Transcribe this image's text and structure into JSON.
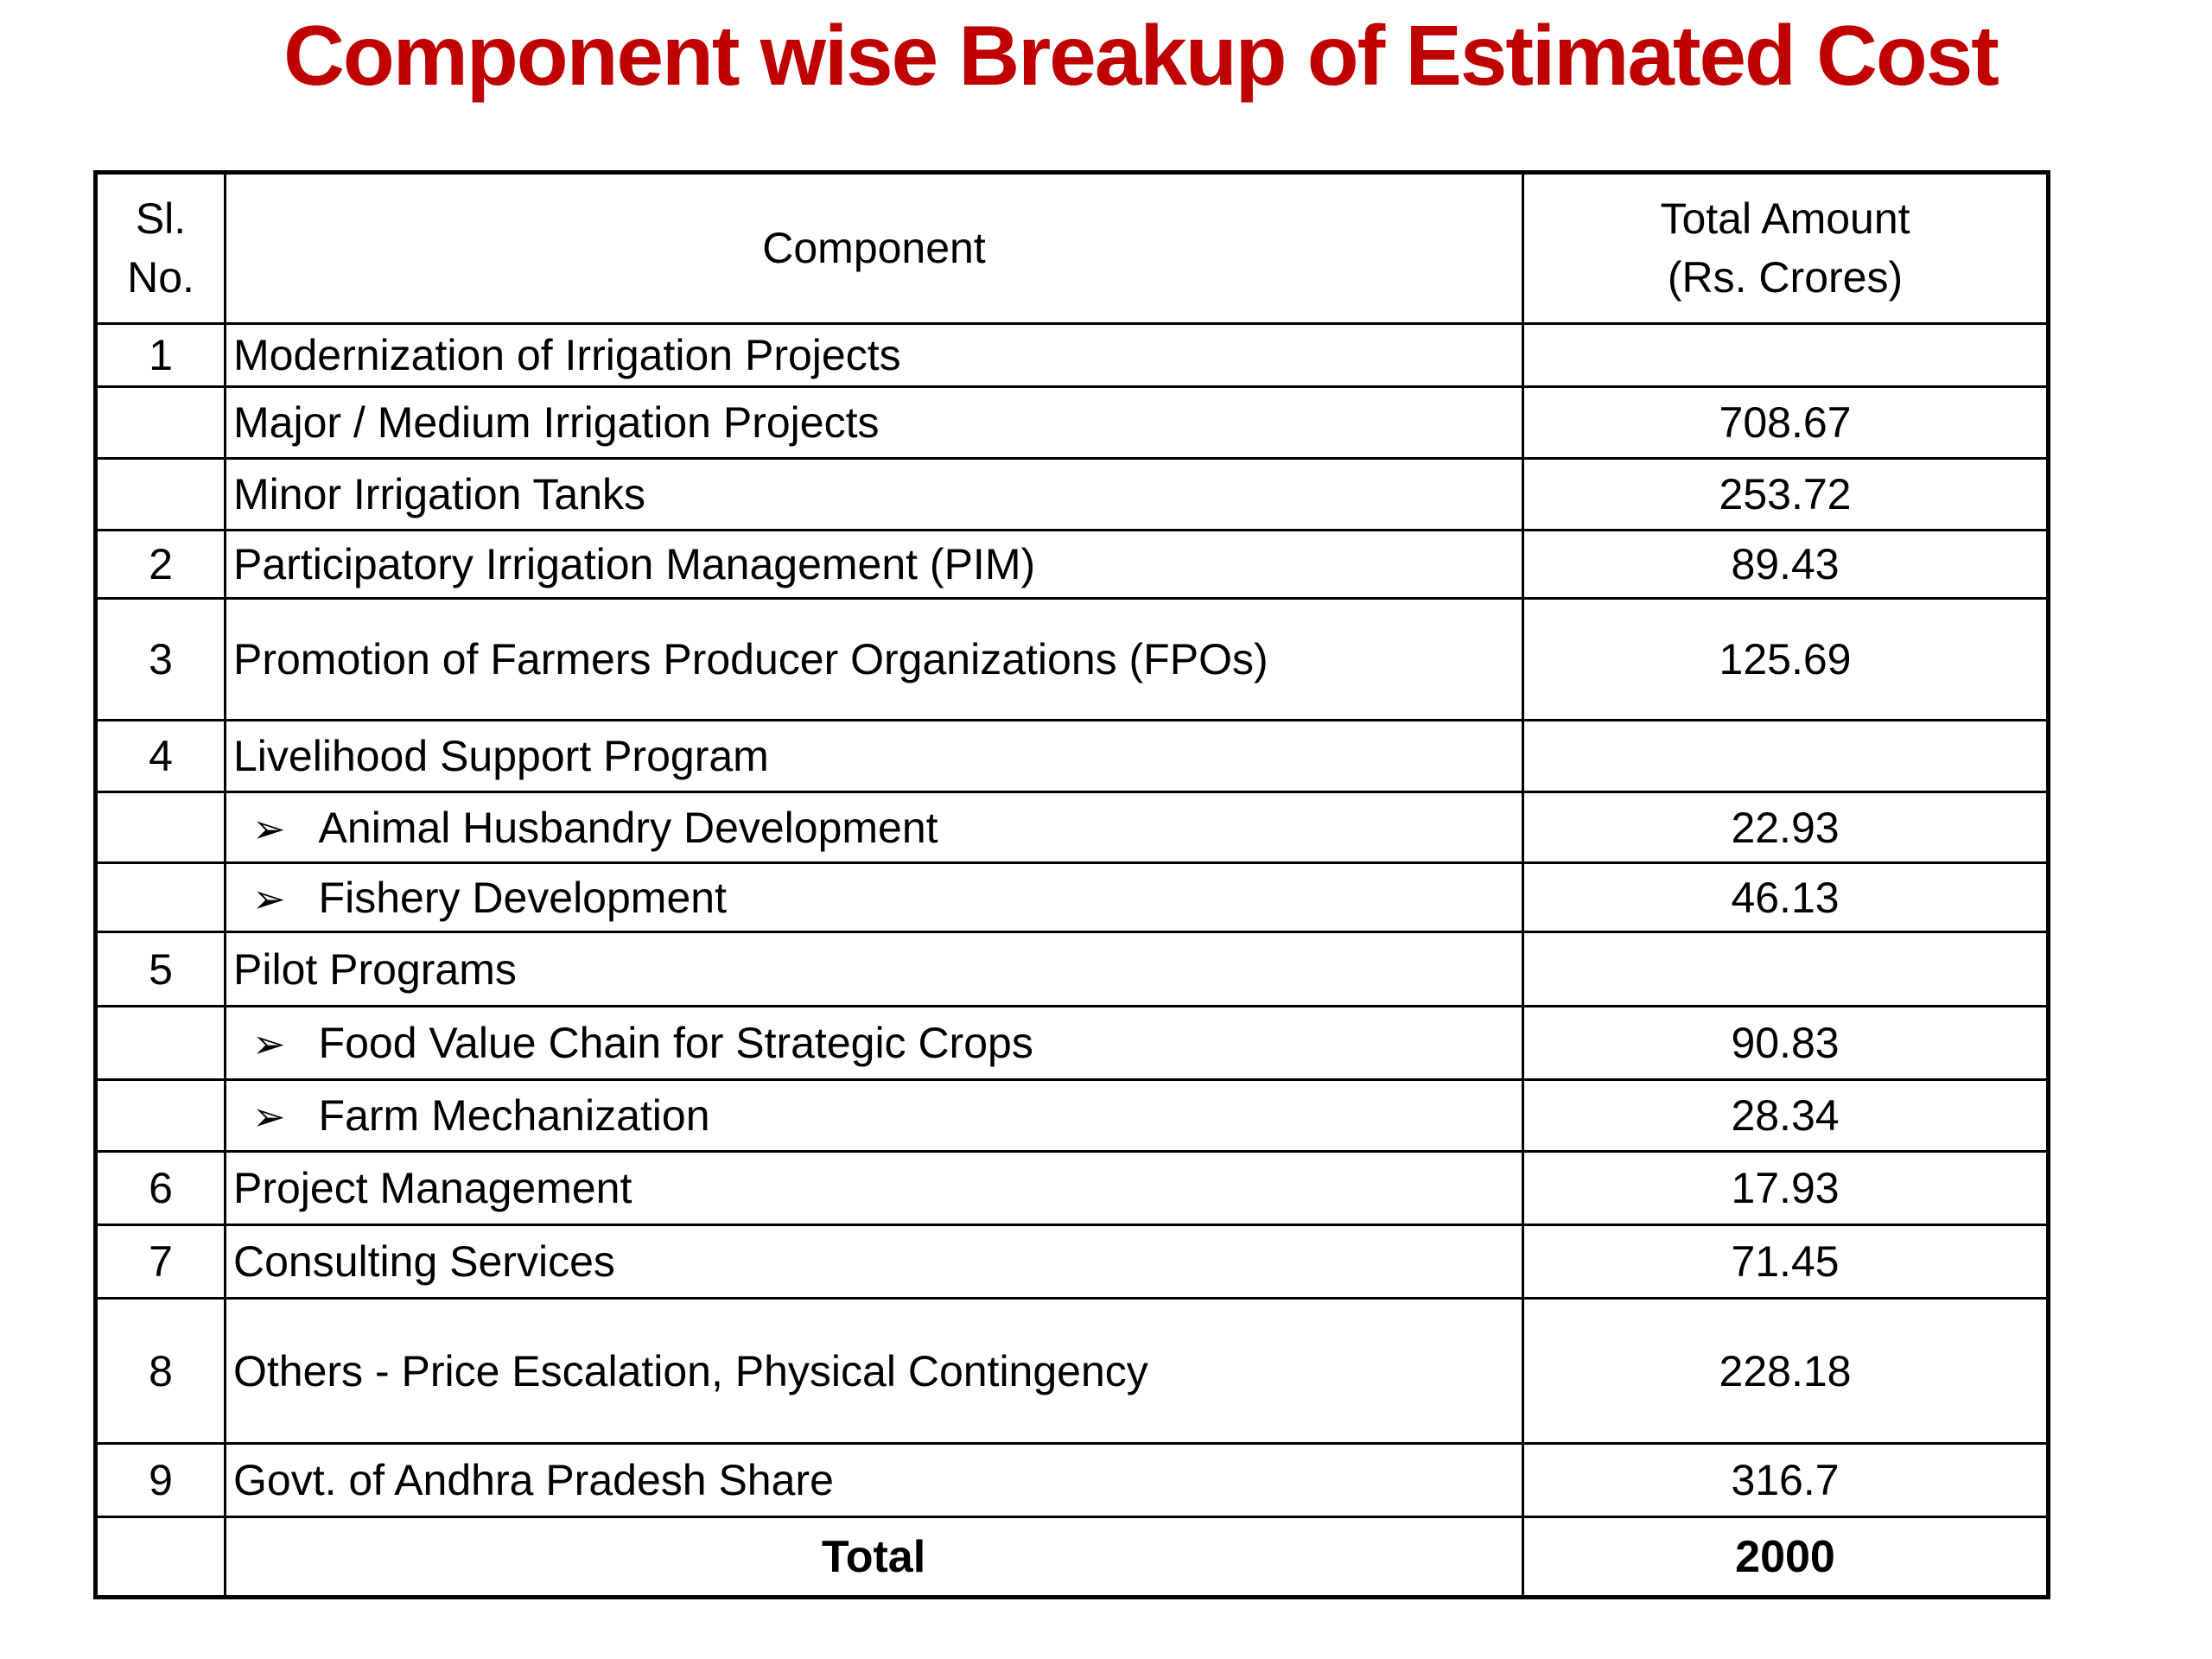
{
  "title": {
    "text": "Component wise Breakup of Estimated Cost",
    "color": "#C00000"
  },
  "table": {
    "headers": [
      "Sl.\nNo.",
      "Component",
      "Total Amount\n(Rs. Crores)"
    ],
    "bullet_icon": {
      "name": "arrowhead-right-bullet-icon",
      "glyph": "➢"
    },
    "rows": [
      {
        "sl": "1",
        "component": "Modernization of Irrigation Projects",
        "amount": "",
        "bullet": false,
        "total": false
      },
      {
        "sl": "",
        "component": "Major / Medium Irrigation Projects",
        "amount": "708.67",
        "bullet": false,
        "total": false
      },
      {
        "sl": "",
        "component": "Minor Irrigation Tanks",
        "amount": "253.72",
        "bullet": false,
        "total": false
      },
      {
        "sl": "2",
        "component": "Participatory Irrigation Management (PIM)",
        "amount": "89.43",
        "bullet": false,
        "total": false
      },
      {
        "sl": "3",
        "component": "Promotion of Farmers Producer Organizations (FPOs)",
        "amount": "125.69",
        "bullet": false,
        "total": false
      },
      {
        "sl": "4",
        "component": "Livelihood Support Program",
        "amount": "",
        "bullet": false,
        "total": false
      },
      {
        "sl": "",
        "component": "Animal Husbandry Development",
        "amount": "22.93",
        "bullet": true,
        "total": false
      },
      {
        "sl": "",
        "component": "Fishery Development",
        "amount": "46.13",
        "bullet": true,
        "total": false
      },
      {
        "sl": "5",
        "component": "Pilot Programs",
        "amount": "",
        "bullet": false,
        "total": false
      },
      {
        "sl": "",
        "component": "Food Value Chain for Strategic Crops",
        "amount": "90.83",
        "bullet": true,
        "total": false
      },
      {
        "sl": "",
        "component": "Farm Mechanization",
        "amount": "28.34",
        "bullet": true,
        "total": false
      },
      {
        "sl": "6",
        "component": "Project Management",
        "amount": "17.93",
        "bullet": false,
        "total": false
      },
      {
        "sl": "7",
        "component": "Consulting Services",
        "amount": "71.45",
        "bullet": false,
        "total": false
      },
      {
        "sl": "8",
        "component": "Others - Price Escalation, Physical Contingency",
        "amount": "228.18",
        "bullet": false,
        "total": false
      },
      {
        "sl": "9",
        "component": "Govt. of Andhra Pradesh Share",
        "amount": "316.7",
        "bullet": false,
        "total": false
      },
      {
        "sl": "",
        "component": "Total",
        "amount": "2000",
        "bullet": false,
        "total": true
      }
    ]
  }
}
